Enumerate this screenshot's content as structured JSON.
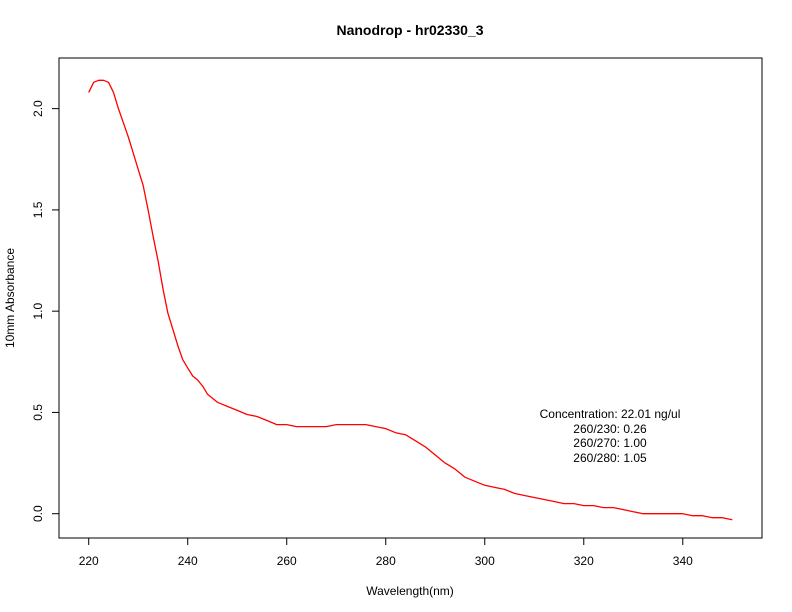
{
  "chart_data": {
    "type": "line",
    "title": "Nanodrop - hr02330_3",
    "xlabel": "Wavelength(nm)",
    "ylabel": "10mm Absorbance",
    "xlim": [
      214,
      356
    ],
    "ylim": [
      -0.12,
      2.25
    ],
    "xticks": [
      220,
      240,
      260,
      280,
      300,
      320,
      340
    ],
    "yticks": [
      0.0,
      0.5,
      1.0,
      1.5,
      2.0
    ],
    "xtick_labels": [
      "220",
      "240",
      "260",
      "280",
      "300",
      "320",
      "340"
    ],
    "ytick_labels": [
      "0.0",
      "0.5",
      "1.0",
      "1.5",
      "2.0"
    ],
    "grid": false,
    "series": [
      {
        "color": "#ff0000",
        "x": [
          220,
          221,
          222,
          223,
          224,
          225,
          226,
          227,
          228,
          229,
          230,
          231,
          232,
          233,
          234,
          235,
          236,
          237,
          238,
          239,
          240,
          241,
          242,
          243,
          244,
          245,
          246,
          247,
          248,
          249,
          250,
          252,
          254,
          256,
          258,
          260,
          262,
          264,
          266,
          268,
          270,
          272,
          274,
          276,
          278,
          280,
          282,
          284,
          286,
          288,
          290,
          292,
          294,
          296,
          298,
          300,
          302,
          304,
          306,
          308,
          310,
          312,
          314,
          316,
          318,
          320,
          322,
          324,
          326,
          328,
          330,
          332,
          334,
          336,
          338,
          340,
          342,
          344,
          346,
          348,
          350
        ],
        "y": [
          2.08,
          2.13,
          2.14,
          2.14,
          2.13,
          2.08,
          2.0,
          1.93,
          1.86,
          1.78,
          1.7,
          1.62,
          1.5,
          1.37,
          1.25,
          1.11,
          0.99,
          0.91,
          0.83,
          0.76,
          0.72,
          0.68,
          0.66,
          0.63,
          0.59,
          0.57,
          0.55,
          0.54,
          0.53,
          0.52,
          0.51,
          0.49,
          0.48,
          0.46,
          0.44,
          0.44,
          0.43,
          0.43,
          0.43,
          0.43,
          0.44,
          0.44,
          0.44,
          0.44,
          0.43,
          0.42,
          0.4,
          0.39,
          0.36,
          0.33,
          0.29,
          0.25,
          0.22,
          0.18,
          0.16,
          0.14,
          0.13,
          0.12,
          0.1,
          0.09,
          0.08,
          0.07,
          0.06,
          0.05,
          0.05,
          0.04,
          0.04,
          0.03,
          0.03,
          0.02,
          0.01,
          0.0,
          0.0,
          0.0,
          0.0,
          0.0,
          -0.01,
          -0.01,
          -0.02,
          -0.02,
          -0.03
        ]
      }
    ],
    "annotations": [
      "Concentration: 22.01 ng/ul",
      "260/230: 0.26",
      "260/270: 1.00",
      "260/280: 1.05"
    ]
  }
}
